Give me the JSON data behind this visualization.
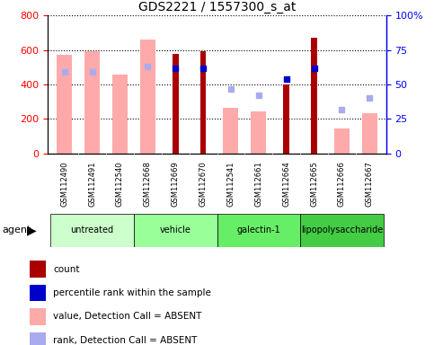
{
  "title": "GDS2221 / 1557300_s_at",
  "samples": [
    "GSM112490",
    "GSM112491",
    "GSM112540",
    "GSM112668",
    "GSM112669",
    "GSM112670",
    "GSM112541",
    "GSM112661",
    "GSM112664",
    "GSM112665",
    "GSM112666",
    "GSM112667"
  ],
  "groups": [
    {
      "label": "untreated",
      "color": "#ccffcc",
      "indices": [
        0,
        1,
        2
      ]
    },
    {
      "label": "vehicle",
      "color": "#99ff99",
      "indices": [
        3,
        4,
        5
      ]
    },
    {
      "label": "galectin-1",
      "color": "#66ee66",
      "indices": [
        6,
        7,
        8
      ]
    },
    {
      "label": "lipopolysaccharide",
      "color": "#44cc44",
      "indices": [
        9,
        10,
        11
      ]
    }
  ],
  "count_present": [
    null,
    null,
    null,
    null,
    580,
    595,
    null,
    null,
    400,
    670,
    null,
    null
  ],
  "value_absent": [
    570,
    595,
    460,
    660,
    null,
    null,
    265,
    245,
    null,
    null,
    145,
    235
  ],
  "rank_present": [
    null,
    null,
    null,
    null,
    62,
    62,
    null,
    null,
    54,
    62,
    null,
    null
  ],
  "rank_absent": [
    59,
    59,
    null,
    63,
    null,
    null,
    47,
    42,
    null,
    null,
    32,
    40
  ],
  "ylim_left": [
    0,
    800
  ],
  "ylim_right": [
    0,
    100
  ],
  "yticks_left": [
    0,
    200,
    400,
    600,
    800
  ],
  "yticks_right": [
    0,
    25,
    50,
    75,
    100
  ],
  "ytick_labels_right": [
    "0",
    "25",
    "50",
    "75",
    "100%"
  ],
  "count_color": "#aa0000",
  "rank_present_color": "#0000cc",
  "value_absent_color": "#ffaaaa",
  "rank_absent_color": "#aaaaee",
  "pink_bar_width": 0.55,
  "red_bar_width": 0.22,
  "legend_items": [
    {
      "color": "#aa0000",
      "label": "count"
    },
    {
      "color": "#0000cc",
      "label": "percentile rank within the sample"
    },
    {
      "color": "#ffaaaa",
      "label": "value, Detection Call = ABSENT"
    },
    {
      "color": "#aaaaee",
      "label": "rank, Detection Call = ABSENT"
    }
  ]
}
